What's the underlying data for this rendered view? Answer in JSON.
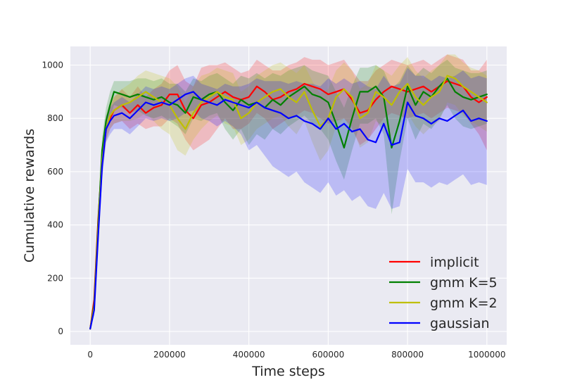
{
  "chart_data": {
    "type": "line",
    "title": "",
    "xlabel": "Time steps",
    "ylabel": "Cumulative rewards",
    "xlim": [
      -50000,
      1050000
    ],
    "ylim": [
      -50,
      1070
    ],
    "xticks": [
      0,
      200000,
      400000,
      600000,
      800000,
      1000000
    ],
    "yticks": [
      0,
      200,
      400,
      600,
      800,
      1000
    ],
    "grid": true,
    "background": "#EAEAF2",
    "legend": "lower-right",
    "series": [
      {
        "name": "implicit",
        "color": "#FF0000",
        "x": [
          0,
          10000,
          20000,
          30000,
          40000,
          50000,
          60000,
          80000,
          100000,
          120000,
          140000,
          160000,
          180000,
          200000,
          220000,
          240000,
          260000,
          280000,
          300000,
          320000,
          340000,
          360000,
          380000,
          400000,
          420000,
          440000,
          460000,
          480000,
          500000,
          520000,
          540000,
          560000,
          580000,
          600000,
          620000,
          640000,
          660000,
          680000,
          700000,
          720000,
          740000,
          760000,
          780000,
          800000,
          820000,
          840000,
          860000,
          880000,
          900000,
          920000,
          940000,
          960000,
          980000,
          1000000
        ],
        "y": [
          10,
          120,
          420,
          650,
          760,
          800,
          830,
          850,
          820,
          850,
          820,
          840,
          850,
          890,
          890,
          830,
          800,
          850,
          860,
          880,
          900,
          880,
          870,
          880,
          920,
          900,
          870,
          880,
          900,
          910,
          930,
          920,
          910,
          890,
          900,
          910,
          870,
          820,
          830,
          870,
          900,
          920,
          910,
          900,
          910,
          920,
          900,
          920,
          940,
          930,
          920,
          880,
          860,
          880
        ],
        "lower": [
          10,
          100,
          380,
          600,
          720,
          760,
          780,
          790,
          760,
          780,
          760,
          770,
          770,
          800,
          780,
          720,
          680,
          700,
          720,
          760,
          800,
          760,
          760,
          780,
          820,
          800,
          760,
          780,
          800,
          810,
          830,
          820,
          800,
          780,
          790,
          800,
          760,
          700,
          720,
          760,
          800,
          820,
          810,
          800,
          810,
          820,
          800,
          820,
          840,
          830,
          820,
          780,
          740,
          680
        ],
        "upper": [
          10,
          140,
          460,
          700,
          800,
          840,
          880,
          910,
          880,
          920,
          880,
          910,
          930,
          980,
          1000,
          940,
          920,
          990,
          1000,
          1000,
          1010,
          990,
          970,
          980,
          1020,
          1000,
          980,
          980,
          1000,
          1010,
          1030,
          1020,
          1020,
          1000,
          1010,
          1020,
          980,
          940,
          940,
          980,
          1000,
          1020,
          1010,
          1000,
          1010,
          1020,
          1000,
          1020,
          1040,
          1030,
          1020,
          980,
          980,
          1020
        ]
      },
      {
        "name": "gmm K=5",
        "color": "#008000",
        "x": [
          0,
          10000,
          20000,
          30000,
          40000,
          50000,
          60000,
          80000,
          100000,
          120000,
          140000,
          160000,
          180000,
          200000,
          220000,
          240000,
          260000,
          280000,
          300000,
          320000,
          340000,
          360000,
          380000,
          400000,
          420000,
          440000,
          460000,
          480000,
          500000,
          520000,
          540000,
          560000,
          580000,
          600000,
          620000,
          640000,
          660000,
          680000,
          700000,
          720000,
          740000,
          760000,
          780000,
          800000,
          820000,
          840000,
          860000,
          880000,
          900000,
          920000,
          940000,
          960000,
          980000,
          1000000
        ],
        "y": [
          10,
          100,
          400,
          680,
          790,
          850,
          900,
          890,
          880,
          890,
          880,
          870,
          880,
          860,
          850,
          820,
          880,
          870,
          890,
          900,
          860,
          830,
          870,
          850,
          860,
          840,
          870,
          850,
          880,
          900,
          920,
          890,
          880,
          860,
          780,
          690,
          800,
          900,
          900,
          920,
          880,
          690,
          790,
          920,
          850,
          900,
          880,
          920,
          950,
          900,
          880,
          870,
          880,
          890
        ],
        "lower": [
          10,
          80,
          360,
          620,
          740,
          800,
          850,
          840,
          820,
          830,
          810,
          800,
          810,
          790,
          770,
          740,
          800,
          790,
          810,
          820,
          760,
          720,
          760,
          700,
          740,
          720,
          760,
          740,
          770,
          790,
          810,
          780,
          760,
          720,
          640,
          570,
          680,
          780,
          780,
          800,
          740,
          440,
          640,
          800,
          720,
          780,
          760,
          800,
          850,
          800,
          770,
          760,
          770,
          780
        ],
        "upper": [
          10,
          120,
          440,
          730,
          840,
          900,
          940,
          940,
          940,
          950,
          950,
          940,
          950,
          930,
          930,
          900,
          950,
          940,
          960,
          970,
          950,
          930,
          960,
          950,
          970,
          950,
          970,
          960,
          980,
          990,
          1000,
          980,
          970,
          960,
          900,
          840,
          920,
          990,
          990,
          1000,
          980,
          910,
          940,
          1000,
          960,
          990,
          970,
          1000,
          1020,
          990,
          980,
          970,
          970,
          980
        ]
      },
      {
        "name": "gmm K=2",
        "color": "#BFBF00",
        "x": [
          0,
          10000,
          20000,
          30000,
          40000,
          50000,
          60000,
          80000,
          100000,
          120000,
          140000,
          160000,
          180000,
          200000,
          220000,
          240000,
          260000,
          280000,
          300000,
          320000,
          340000,
          360000,
          380000,
          400000,
          420000,
          440000,
          460000,
          480000,
          500000,
          520000,
          540000,
          560000,
          580000,
          600000,
          620000,
          640000,
          660000,
          680000,
          700000,
          720000,
          740000,
          760000,
          780000,
          800000,
          820000,
          840000,
          860000,
          880000,
          900000,
          920000,
          940000,
          960000,
          980000,
          1000000
        ],
        "y": [
          10,
          90,
          380,
          640,
          760,
          810,
          830,
          850,
          860,
          880,
          900,
          880,
          860,
          850,
          800,
          760,
          820,
          860,
          880,
          900,
          880,
          870,
          800,
          820,
          860,
          880,
          900,
          910,
          880,
          860,
          900,
          830,
          770,
          800,
          880,
          910,
          880,
          800,
          820,
          900,
          880,
          850,
          900,
          930,
          880,
          850,
          880,
          900,
          960,
          950,
          920,
          900,
          880,
          860
        ],
        "lower": [
          10,
          70,
          340,
          590,
          710,
          760,
          780,
          790,
          790,
          800,
          820,
          790,
          760,
          740,
          680,
          660,
          720,
          760,
          790,
          810,
          780,
          770,
          700,
          720,
          760,
          780,
          800,
          810,
          770,
          740,
          790,
          710,
          640,
          680,
          770,
          800,
          770,
          690,
          710,
          790,
          770,
          730,
          790,
          820,
          770,
          740,
          770,
          790,
          860,
          850,
          810,
          790,
          770,
          750
        ],
        "upper": [
          10,
          110,
          420,
          690,
          810,
          860,
          880,
          910,
          930,
          960,
          980,
          970,
          960,
          950,
          920,
          860,
          920,
          960,
          970,
          990,
          980,
          970,
          900,
          920,
          960,
          980,
          1000,
          1010,
          990,
          970,
          1000,
          940,
          890,
          910,
          980,
          1010,
          980,
          910,
          930,
          1000,
          980,
          960,
          1000,
          1030,
          980,
          950,
          980,
          1000,
          1040,
          1040,
          1010,
          990,
          980,
          960
        ]
      },
      {
        "name": "gaussian",
        "color": "#0000FF",
        "x": [
          0,
          10000,
          20000,
          30000,
          40000,
          50000,
          60000,
          80000,
          100000,
          120000,
          140000,
          160000,
          180000,
          200000,
          220000,
          240000,
          260000,
          280000,
          300000,
          320000,
          340000,
          360000,
          380000,
          400000,
          420000,
          440000,
          460000,
          480000,
          500000,
          520000,
          540000,
          560000,
          580000,
          600000,
          620000,
          640000,
          660000,
          680000,
          700000,
          720000,
          740000,
          760000,
          780000,
          800000,
          820000,
          840000,
          860000,
          880000,
          900000,
          920000,
          940000,
          960000,
          980000,
          1000000
        ],
        "y": [
          10,
          80,
          360,
          620,
          760,
          790,
          810,
          820,
          800,
          830,
          860,
          850,
          860,
          850,
          870,
          890,
          900,
          870,
          860,
          850,
          870,
          860,
          850,
          840,
          860,
          840,
          830,
          820,
          800,
          810,
          790,
          780,
          760,
          800,
          760,
          780,
          750,
          760,
          720,
          710,
          780,
          700,
          710,
          860,
          810,
          800,
          780,
          800,
          790,
          810,
          830,
          790,
          800,
          790
        ],
        "lower": [
          10,
          60,
          320,
          570,
          710,
          740,
          760,
          760,
          740,
          770,
          800,
          790,
          800,
          790,
          800,
          820,
          830,
          800,
          790,
          770,
          790,
          770,
          740,
          680,
          700,
          660,
          620,
          600,
          580,
          600,
          560,
          540,
          520,
          560,
          510,
          530,
          490,
          510,
          470,
          460,
          520,
          460,
          470,
          610,
          560,
          560,
          540,
          560,
          550,
          570,
          590,
          550,
          560,
          550
        ],
        "upper": [
          10,
          100,
          400,
          670,
          810,
          840,
          860,
          880,
          860,
          890,
          920,
          910,
          920,
          910,
          930,
          950,
          960,
          930,
          920,
          910,
          930,
          920,
          920,
          930,
          950,
          940,
          940,
          940,
          930,
          940,
          930,
          930,
          920,
          950,
          930,
          950,
          930,
          940,
          920,
          910,
          960,
          920,
          930,
          990,
          960,
          960,
          940,
          960,
          950,
          960,
          980,
          950,
          960,
          950
        ]
      }
    ]
  }
}
